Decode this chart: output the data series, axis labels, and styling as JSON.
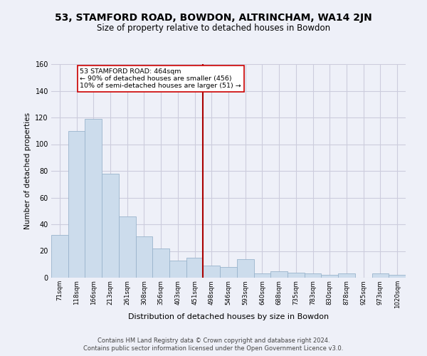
{
  "title": "53, STAMFORD ROAD, BOWDON, ALTRINCHAM, WA14 2JN",
  "subtitle": "Size of property relative to detached houses in Bowdon",
  "xlabel": "Distribution of detached houses by size in Bowdon",
  "ylabel": "Number of detached properties",
  "bar_labels": [
    "71sqm",
    "118sqm",
    "166sqm",
    "213sqm",
    "261sqm",
    "308sqm",
    "356sqm",
    "403sqm",
    "451sqm",
    "498sqm",
    "546sqm",
    "593sqm",
    "640sqm",
    "688sqm",
    "735sqm",
    "783sqm",
    "830sqm",
    "878sqm",
    "925sqm",
    "973sqm",
    "1020sqm"
  ],
  "bar_heights": [
    32,
    110,
    119,
    78,
    46,
    31,
    22,
    13,
    15,
    9,
    8,
    14,
    3,
    5,
    4,
    3,
    2,
    3,
    0,
    3,
    2
  ],
  "bar_color": "#ccdcec",
  "bar_edge_color": "#9ab4cc",
  "vline_x": 8.5,
  "vline_color": "#aa0000",
  "annotation_title": "53 STAMFORD ROAD: 464sqm",
  "annotation_line1": "← 90% of detached houses are smaller (456)",
  "annotation_line2": "10% of semi-detached houses are larger (51) →",
  "annotation_box_color": "#ffffff",
  "annotation_box_edge": "#cc0000",
  "ylim": [
    0,
    160
  ],
  "yticks": [
    0,
    20,
    40,
    60,
    80,
    100,
    120,
    140,
    160
  ],
  "footer1": "Contains HM Land Registry data © Crown copyright and database right 2024.",
  "footer2": "Contains public sector information licensed under the Open Government Licence v3.0.",
  "background_color": "#eef0f8",
  "grid_color": "#ccccdd",
  "title_fontsize": 10,
  "subtitle_fontsize": 8.5
}
